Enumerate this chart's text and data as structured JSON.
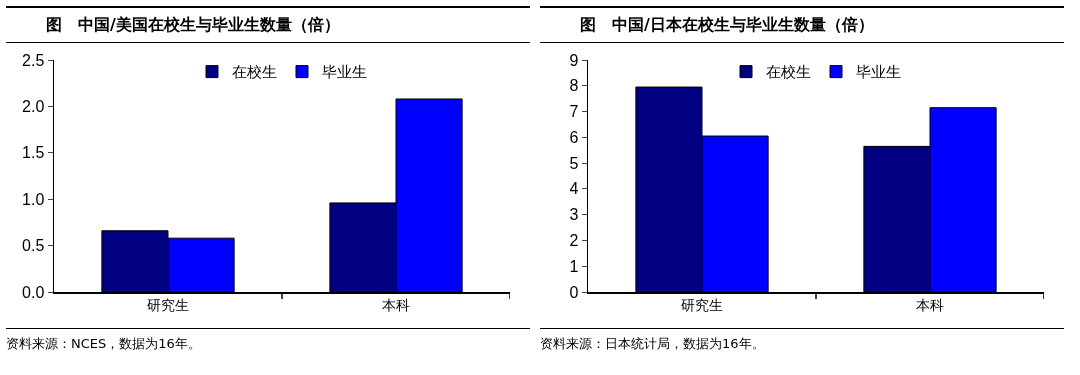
{
  "chart_data": [
    {
      "type": "bar",
      "title": "图　中国/美国在校生与毕业生数量（倍）",
      "categories": [
        "研究生",
        "本科"
      ],
      "series": [
        {
          "name": "在校生",
          "color": "#000080",
          "values": [
            0.66,
            0.96
          ]
        },
        {
          "name": "毕业生",
          "color": "#0000ff",
          "values": [
            0.58,
            2.08
          ]
        }
      ],
      "ylim": [
        0,
        2.5
      ],
      "yticks": [
        {
          "value": 0,
          "label": "0.0"
        },
        {
          "value": 0.5,
          "label": "0.5"
        },
        {
          "value": 1,
          "label": "1.0"
        },
        {
          "value": 1.5,
          "label": "1.5"
        },
        {
          "value": 2,
          "label": "2.0"
        },
        {
          "value": 2.5,
          "label": "2.5"
        }
      ],
      "grid": false,
      "legend": "top",
      "annotations": [
        "资料来源：NCES，数据为16年。"
      ]
    },
    {
      "type": "bar",
      "title": "图　中国/日本在校生与毕业生数量（倍）",
      "categories": [
        "研究生",
        "本科"
      ],
      "series": [
        {
          "name": "在校生",
          "color": "#000080",
          "values": [
            7.95,
            5.65
          ]
        },
        {
          "name": "毕业生",
          "color": "#0000ff",
          "values": [
            6.05,
            7.15
          ]
        }
      ],
      "ylim": [
        0,
        9
      ],
      "yticks": [
        0,
        1,
        2,
        3,
        4,
        5,
        6,
        7,
        8,
        9
      ],
      "grid": false,
      "legend": "top",
      "annotations": [
        "资料来源：日本统计局，数据为16年。"
      ]
    }
  ]
}
